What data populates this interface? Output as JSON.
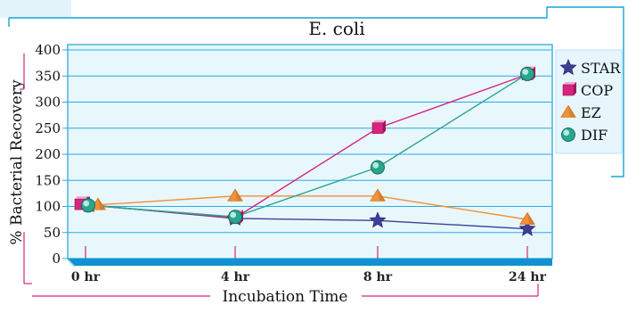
{
  "chart_data": {
    "type": "line",
    "title": "E. coli",
    "xlabel": "Incubation Time",
    "ylabel": "% Bacterial Recovery",
    "categories": [
      "0 hr",
      "4 hr",
      "8 hr",
      "24 hr"
    ],
    "ylim": [
      0,
      400
    ],
    "yticks": [
      0,
      50,
      100,
      150,
      200,
      250,
      300,
      350,
      400
    ],
    "grid": true,
    "legend": "right",
    "series": [
      {
        "name": "STAR",
        "values": [
          103,
          77,
          73,
          57
        ],
        "color": "#3f3f9a",
        "marker": "star"
      },
      {
        "name": "COP",
        "values": [
          104,
          78,
          250,
          353
        ],
        "color": "#d6247f",
        "marker": "cube"
      },
      {
        "name": "EZ",
        "values": [
          103,
          120,
          120,
          75
        ],
        "color": "#f0923a",
        "marker": "triangle"
      },
      {
        "name": "DIF",
        "values": [
          102,
          80,
          175,
          354
        ],
        "color": "#2aa58f",
        "marker": "sphere"
      }
    ]
  }
}
